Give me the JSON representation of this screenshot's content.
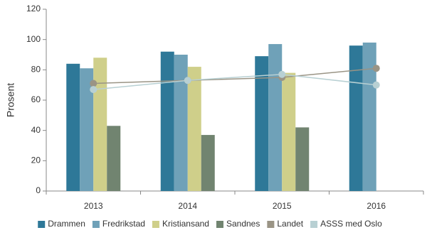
{
  "chart_data": {
    "type": "bar_line",
    "y_label": "Prosent",
    "categories": [
      "2013",
      "2014",
      "2015",
      "2016"
    ],
    "series": [
      {
        "name": "Drammen",
        "type": "bar",
        "color": "#2e7898",
        "values": [
          84,
          92,
          89,
          96
        ]
      },
      {
        "name": "Fredrikstad",
        "type": "bar",
        "color": "#6fa1b8",
        "values": [
          81,
          90,
          97,
          98
        ]
      },
      {
        "name": "Kristiansand",
        "type": "bar",
        "color": "#cfcf8a",
        "values": [
          88,
          82,
          78,
          null
        ]
      },
      {
        "name": "Sandnes",
        "type": "bar",
        "color": "#718470",
        "values": [
          43,
          37,
          42,
          null
        ]
      },
      {
        "name": "Landet",
        "type": "line",
        "color": "#9a9485",
        "values": [
          71,
          73,
          75,
          81
        ]
      },
      {
        "name": "ASSS med Oslo",
        "type": "line",
        "color": "#b8d0d3",
        "values": [
          67,
          73,
          77,
          70
        ]
      }
    ],
    "ylim": [
      0,
      120
    ],
    "yticks": [
      0,
      20,
      40,
      60,
      80,
      100,
      120
    ],
    "legend": "bottom"
  }
}
